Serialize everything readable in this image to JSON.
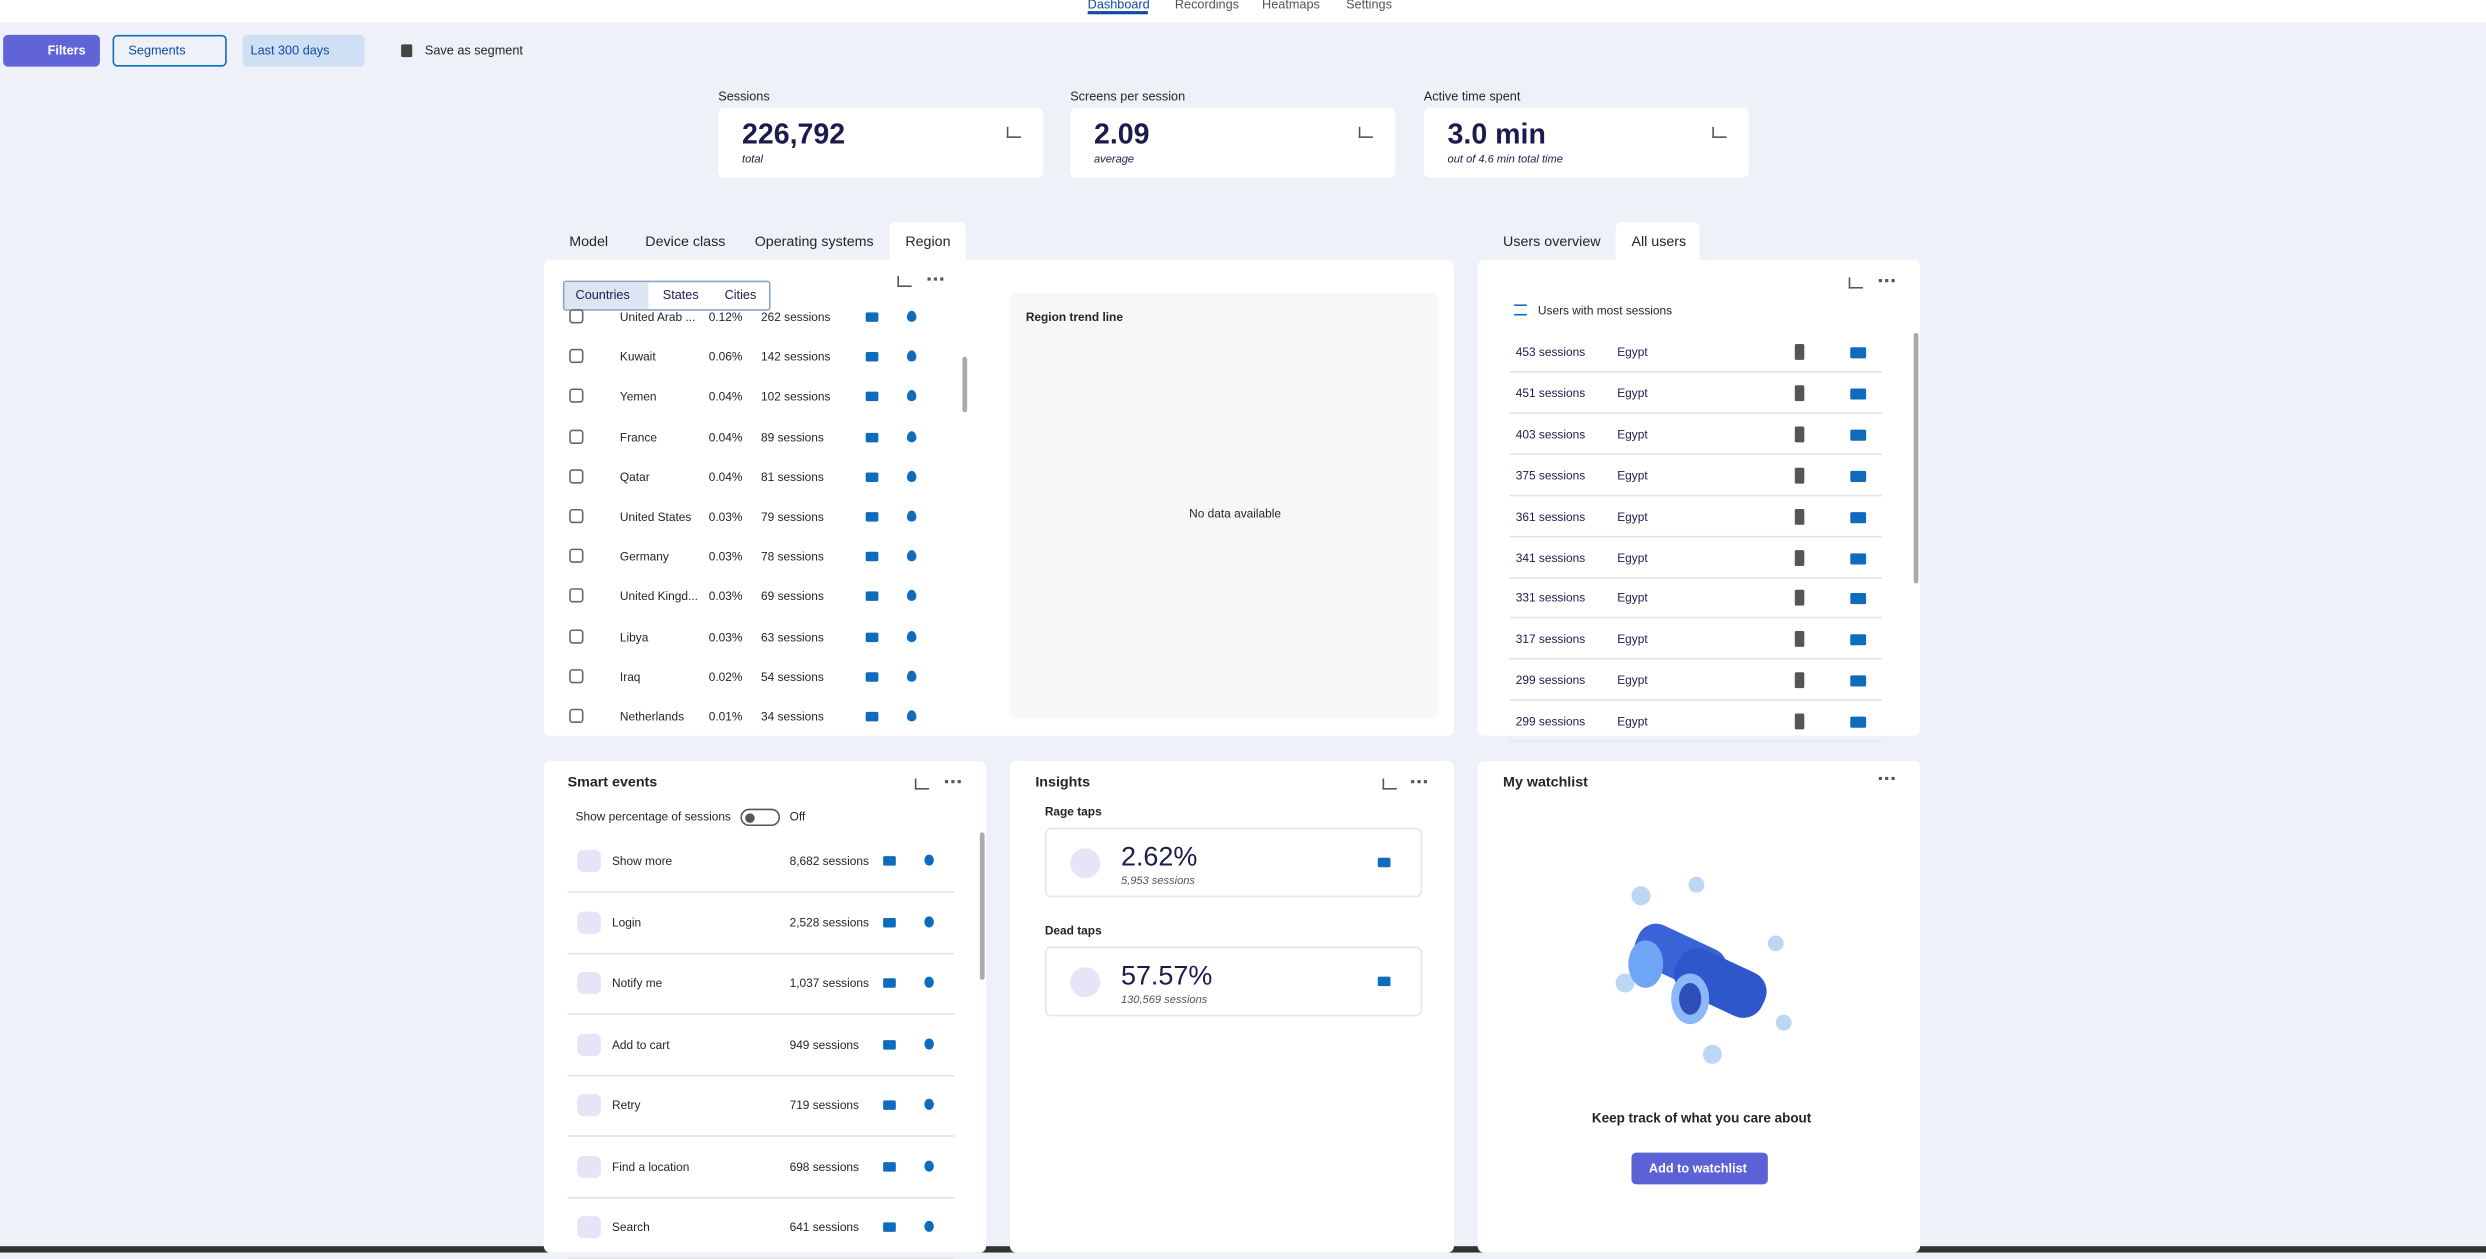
{
  "nav": {
    "tabs": [
      "Dashboard",
      "Recordings",
      "Heatmaps",
      "Settings"
    ]
  },
  "toolbar": {
    "filters": "Filters",
    "segments": "Segments",
    "date_range": "Last 300 days",
    "save": "Save as segment"
  },
  "metrics": [
    {
      "label": "Sessions",
      "value": "226,792",
      "sub": "total"
    },
    {
      "label": "Screens per session",
      "value": "2.09",
      "sub": "average"
    },
    {
      "label": "Active time spent",
      "value": "3.0 min",
      "sub": "out of 4.6 min total time"
    }
  ],
  "region_panel": {
    "tabs": [
      "Model",
      "Device class",
      "Operating systems",
      "Region"
    ],
    "subtabs": [
      "Countries",
      "States",
      "Cities"
    ],
    "rows": [
      [
        "United Arab ...",
        "0.12%",
        "262 sessions"
      ],
      [
        "Kuwait",
        "0.06%",
        "142 sessions"
      ],
      [
        "Yemen",
        "0.04%",
        "102 sessions"
      ],
      [
        "France",
        "0.04%",
        "89 sessions"
      ],
      [
        "Qatar",
        "0.04%",
        "81 sessions"
      ],
      [
        "United States",
        "0.03%",
        "79 sessions"
      ],
      [
        "Germany",
        "0.03%",
        "78 sessions"
      ],
      [
        "United Kingd...",
        "0.03%",
        "69 sessions"
      ],
      [
        "Libya",
        "0.03%",
        "63 sessions"
      ],
      [
        "Iraq",
        "0.02%",
        "54 sessions"
      ],
      [
        "Netherlands",
        "0.01%",
        "34 sessions"
      ]
    ],
    "trend_title": "Region trend line",
    "empty": "No data available"
  },
  "users_panel": {
    "tabs": [
      "Users overview",
      "All users"
    ],
    "sort": "Users with most sessions",
    "rows": [
      [
        "453 sessions",
        "Egypt"
      ],
      [
        "451 sessions",
        "Egypt"
      ],
      [
        "403 sessions",
        "Egypt"
      ],
      [
        "375 sessions",
        "Egypt"
      ],
      [
        "361 sessions",
        "Egypt"
      ],
      [
        "341 sessions",
        "Egypt"
      ],
      [
        "331 sessions",
        "Egypt"
      ],
      [
        "317 sessions",
        "Egypt"
      ],
      [
        "299 sessions",
        "Egypt"
      ],
      [
        "299 sessions",
        "Egypt"
      ]
    ]
  },
  "smart_events": {
    "title": "Smart events",
    "toggle_label": "Show percentage of sessions",
    "toggle_state": "Off",
    "rows": [
      [
        "Show more",
        "8,682 sessions"
      ],
      [
        "Login",
        "2,528 sessions"
      ],
      [
        "Notify me",
        "1,037 sessions"
      ],
      [
        "Add to cart",
        "949 sessions"
      ],
      [
        "Retry",
        "719 sessions"
      ],
      [
        "Find a location",
        "698 sessions"
      ],
      [
        "Search",
        "641 sessions"
      ]
    ]
  },
  "insights": {
    "title": "Insights",
    "items": [
      {
        "label": "Rage taps",
        "value": "2.62%",
        "sub": "5,953 sessions"
      },
      {
        "label": "Dead taps",
        "value": "57.57%",
        "sub": "130,569 sessions"
      }
    ]
  },
  "watchlist": {
    "title": "My watchlist",
    "text": "Keep track of what you care about",
    "button": "Add to watchlist"
  }
}
